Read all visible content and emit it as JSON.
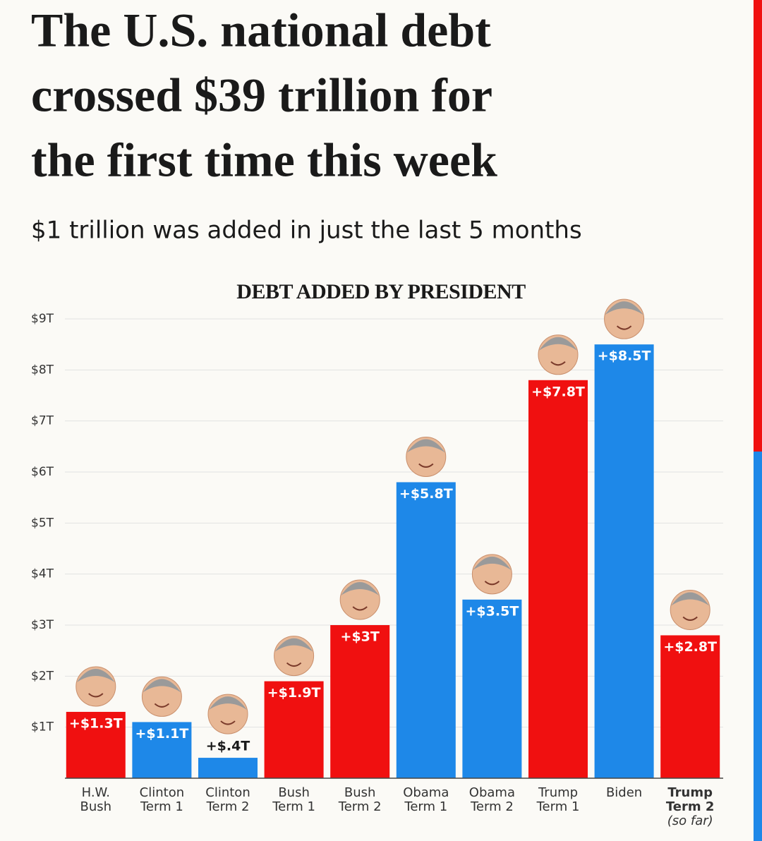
{
  "chart_data": {
    "type": "bar",
    "title": [
      "The U.S. national debt",
      "crossed $39 trillion for",
      "the first time this week"
    ],
    "subtitle": "$1 trillion was added in just the last 5 months",
    "chart_title": "DEBT ADDED BY PRESIDENT",
    "categories": [
      [
        "H.W.",
        "Bush"
      ],
      [
        "Clinton",
        "Term 1"
      ],
      [
        "Clinton",
        "Term 2"
      ],
      [
        "Bush",
        "Term 1"
      ],
      [
        "Bush",
        "Term 2"
      ],
      [
        "Obama",
        "Term 1"
      ],
      [
        "Obama",
        "Term 2"
      ],
      [
        "Trump",
        "Term 1"
      ],
      [
        "Biden"
      ],
      [
        "Trump",
        "Term 2",
        "(so far)"
      ]
    ],
    "values": [
      1.3,
      1.1,
      0.4,
      1.9,
      3,
      5.8,
      3.5,
      7.8,
      8.5,
      2.8
    ],
    "value_labels": [
      "+$1.3T",
      "+$1.1T",
      "+$.4T",
      "+$1.9T",
      "+$3T",
      "+$5.8T",
      "+$3.5T",
      "+$7.8T",
      "+$8.5T",
      "+$2.8T"
    ],
    "colors": [
      "#f01010",
      "#1e88e8",
      "#1e88e8",
      "#f01010",
      "#f01010",
      "#1e88e8",
      "#1e88e8",
      "#f01010",
      "#1e88e8",
      "#f01010"
    ],
    "ylim": [
      0,
      9
    ],
    "yticks": [
      {
        "value": 1,
        "label": "$1T"
      },
      {
        "value": 2,
        "label": "$2T"
      },
      {
        "value": 3,
        "label": "$3T"
      },
      {
        "value": 4,
        "label": "$4T"
      },
      {
        "value": 5,
        "label": "$5T"
      },
      {
        "value": 6,
        "label": "$6T"
      },
      {
        "value": 7,
        "label": "$7T"
      },
      {
        "value": 8,
        "label": "$8T"
      },
      {
        "value": 9,
        "label": "$9T"
      }
    ],
    "grid": true
  }
}
